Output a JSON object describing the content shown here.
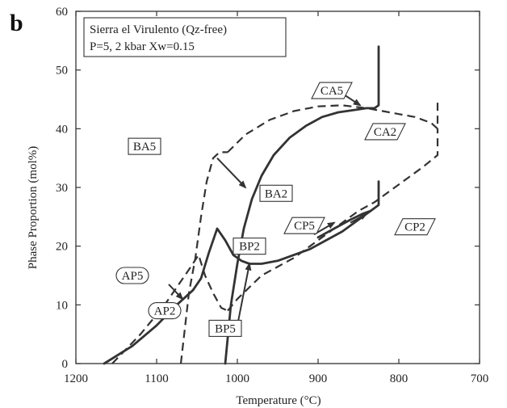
{
  "panel_label": "b",
  "chart_data": {
    "type": "line",
    "title_lines": [
      "Sierra el Virulento (Qz-free)",
      "P=5, 2 kbar  Xw=0.15"
    ],
    "xlabel": "Temperature (°C)",
    "ylabel": "Phase Proportion (mol%)",
    "xlim": [
      1200,
      700
    ],
    "ylim": [
      0,
      60
    ],
    "x_ticks": [
      1200,
      1100,
      1000,
      900,
      800,
      700
    ],
    "y_ticks": [
      0,
      10,
      20,
      30,
      40,
      50,
      60
    ],
    "series": [
      {
        "name": "AP5",
        "style": "dashed",
        "x": [
          1155,
          1120,
          1090,
          1060,
          1048,
          1040,
          1030,
          1020,
          1012
        ],
        "y": [
          0,
          5,
          10,
          16,
          18.5,
          15,
          12,
          9.5,
          9
        ]
      },
      {
        "name": "BA5",
        "style": "dashed",
        "x": [
          1070,
          1060,
          1052,
          1045,
          1038,
          1030,
          1022,
          1012
        ],
        "y": [
          0,
          12,
          18,
          25,
          31,
          35,
          36,
          36
        ]
      },
      {
        "name": "CA5",
        "style": "dashed",
        "x": [
          1012,
          990,
          960,
          930,
          900,
          870,
          840,
          820,
          800,
          780,
          760,
          752,
          752
        ],
        "y": [
          36,
          39,
          41.5,
          43,
          43.8,
          44,
          43.5,
          43,
          42.5,
          42,
          41,
          40,
          45
        ]
      },
      {
        "name": "BP5",
        "style": "dashed",
        "x": [
          1012,
          1000,
          985,
          970,
          950,
          930,
          910,
          890,
          870,
          850,
          830,
          810,
          790,
          770,
          752,
          752
        ],
        "y": [
          9,
          11,
          13,
          15,
          16.5,
          18,
          20,
          22,
          24,
          26,
          27.5,
          29.5,
          31.5,
          33.5,
          35.5,
          40
        ]
      },
      {
        "name": "AP2",
        "style": "solid",
        "x": [
          1165,
          1130,
          1100,
          1075,
          1055,
          1045,
          1035,
          1025,
          1015,
          1005,
          995,
          985
        ],
        "y": [
          0,
          3,
          6.5,
          10,
          12.5,
          14.5,
          19,
          23,
          21,
          18.5,
          17.5,
          17
        ]
      },
      {
        "name": "BA2",
        "style": "solid",
        "x": [
          1015,
          1008,
          1000,
          992,
          982,
          970,
          955,
          935,
          915,
          895,
          875,
          855,
          840,
          830,
          825,
          825
        ],
        "y": [
          0,
          10,
          17,
          23,
          28,
          32,
          35.5,
          38.5,
          40.5,
          42,
          42.8,
          43.2,
          43.5,
          43.5,
          44,
          54
        ]
      },
      {
        "name": "BP2",
        "style": "solid",
        "x": [
          985,
          970,
          950,
          930,
          910,
          890,
          870,
          850,
          835,
          825,
          825
        ],
        "y": [
          17,
          17,
          17.5,
          18.5,
          19.5,
          21,
          22.5,
          24.5,
          26,
          27,
          31
        ]
      },
      {
        "name": "CP2",
        "style": "solid",
        "x": [
          900,
          880,
          860,
          845,
          835
        ],
        "y": [
          21.5,
          23,
          24.5,
          25.5,
          26
        ]
      }
    ],
    "labels": [
      {
        "text": "CA5",
        "shape": "parallelogram",
        "at": [
          883,
          46.5
        ]
      },
      {
        "text": "CA2",
        "shape": "parallelogram",
        "at": [
          817,
          39.5
        ]
      },
      {
        "text": "BA5",
        "shape": "rect",
        "at": [
          1115,
          37
        ]
      },
      {
        "text": "BA2",
        "shape": "rect",
        "at": [
          952,
          29
        ]
      },
      {
        "text": "CP5",
        "shape": "parallelogram",
        "at": [
          917,
          23.5
        ]
      },
      {
        "text": "CP2",
        "shape": "parallelogram",
        "at": [
          780,
          23.3
        ]
      },
      {
        "text": "BP2",
        "shape": "rect",
        "at": [
          985,
          20
        ]
      },
      {
        "text": "AP5",
        "shape": "rounded",
        "at": [
          1130,
          15
        ]
      },
      {
        "text": "AP2",
        "shape": "rounded",
        "at": [
          1090,
          9
        ]
      },
      {
        "text": "BP5",
        "shape": "rect",
        "at": [
          1015,
          6
        ]
      }
    ],
    "arrows": [
      {
        "from": [
          870,
          46
        ],
        "to": [
          848,
          44
        ]
      },
      {
        "from": [
          1025,
          35
        ],
        "to": [
          990,
          30
        ]
      },
      {
        "from": [
          1000,
          6.5
        ],
        "to": [
          985,
          17
        ]
      },
      {
        "from": [
          1085,
          13.5
        ],
        "to": [
          1068,
          11
        ]
      },
      {
        "from": [
          905,
          22
        ],
        "to": [
          880,
          24
        ]
      },
      {
        "from": [
          860,
          24
        ],
        "to": [
          840,
          25.5
        ]
      }
    ],
    "grid": false
  }
}
